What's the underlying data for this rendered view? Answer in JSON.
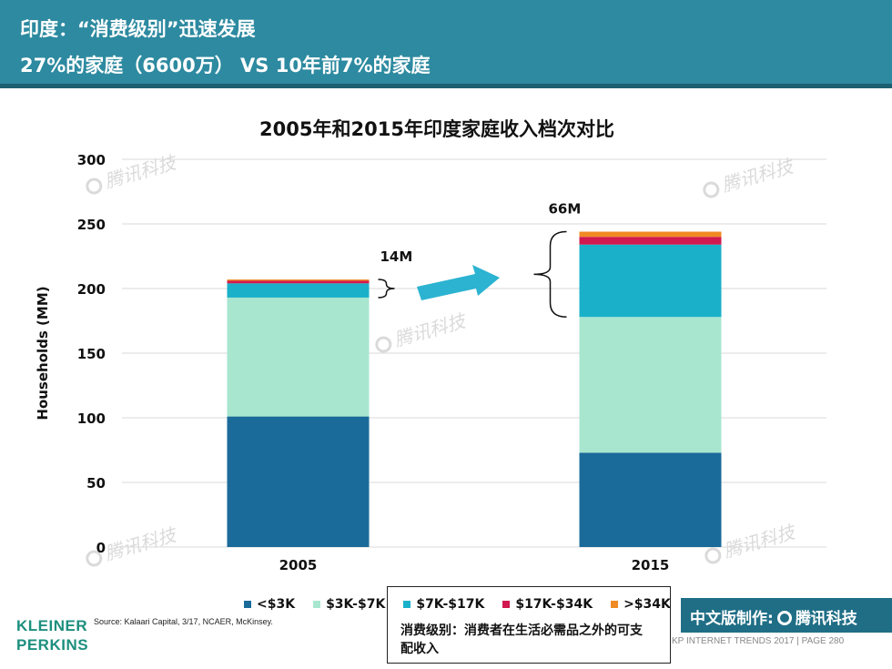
{
  "header": {
    "line1": "印度：“消费级别”迅速发展",
    "line2": "27%的家庭（6600万） VS  10年前7%的家庭"
  },
  "chart_data": {
    "type": "bar",
    "stacked": true,
    "title": "2005年和2015年印度家庭收入档次对比",
    "ylabel": "Households (MM)",
    "xlabel": "",
    "ylim": [
      0,
      300
    ],
    "yticks": [
      0,
      50,
      100,
      150,
      200,
      250,
      300
    ],
    "categories": [
      "2005",
      "2015"
    ],
    "series": [
      {
        "name": "<$3K",
        "color": "#1a6b9a",
        "values": [
          101,
          73
        ]
      },
      {
        "name": "$3K-$7K",
        "color": "#a8e6d0",
        "values": [
          92,
          105
        ]
      },
      {
        "name": "$7K-$17K",
        "color": "#1ab0c9",
        "values": [
          11,
          56
        ]
      },
      {
        "name": "$17K-$34K",
        "color": "#d1194f",
        "values": [
          2,
          6
        ]
      },
      {
        "name": ">$34K",
        "color": "#f08a24",
        "values": [
          1,
          4
        ]
      }
    ],
    "annotations": [
      {
        "label": "14M",
        "category": "2005",
        "range": [
          193,
          207
        ]
      },
      {
        "label": "66M",
        "category": "2015",
        "range": [
          178,
          244
        ]
      }
    ],
    "grid": true
  },
  "source": "Source: Kalaari Capital, 3/17, NCAER, McKinsey.",
  "logo": {
    "line1": "KLEINER",
    "line2": "PERKINS"
  },
  "note": "消费级别：消费者在生活必需品之外的可支配收入",
  "footer": "KP INTERNET TRENDS 2017  |  PAGE 280",
  "tencent": {
    "label": "中文版制作:",
    "brand": "腾讯科技"
  },
  "watermark": "腾讯科技"
}
